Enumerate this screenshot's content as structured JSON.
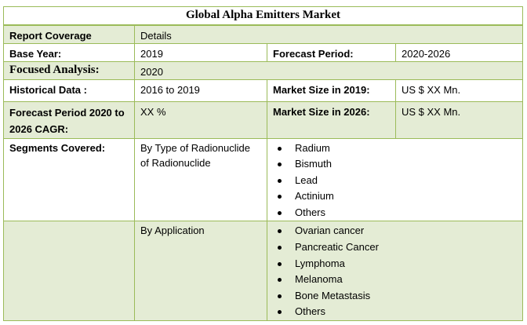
{
  "title": "Global Alpha Emitters Market",
  "rows": {
    "report_coverage": {
      "label": "Report Coverage",
      "value": "Details"
    },
    "base_year": {
      "label": "Base Year:",
      "value": "2019",
      "label2": "Forecast Period:",
      "value2": "2020-2026"
    },
    "focused": {
      "label": "Focused Analysis:",
      "value": "2020"
    },
    "historical": {
      "label": "Historical Data :",
      "value": "2016 to 2019",
      "label2": "Market Size in 2019:",
      "value2": "US $ XX Mn."
    },
    "cagr": {
      "label": "Forecast Period 2020 to 2026 CAGR:",
      "value": "XX %",
      "label2": "Market Size in 2026:",
      "value2": "US $ XX Mn."
    }
  },
  "segments": {
    "label": "Segments Covered:",
    "groups": [
      {
        "name": "By Type of Radionuclide of Radionuclide",
        "items": [
          "Radium",
          "Bismuth",
          "Lead",
          "Actinium",
          "Others"
        ]
      },
      {
        "name": "By Application",
        "items": [
          "Ovarian cancer",
          "Pancreatic Cancer",
          "Lymphoma",
          "Melanoma",
          "Bone Metastasis",
          "Others"
        ]
      }
    ]
  },
  "colors": {
    "border": "#9bbb59",
    "shade": "#e4ecd5"
  }
}
